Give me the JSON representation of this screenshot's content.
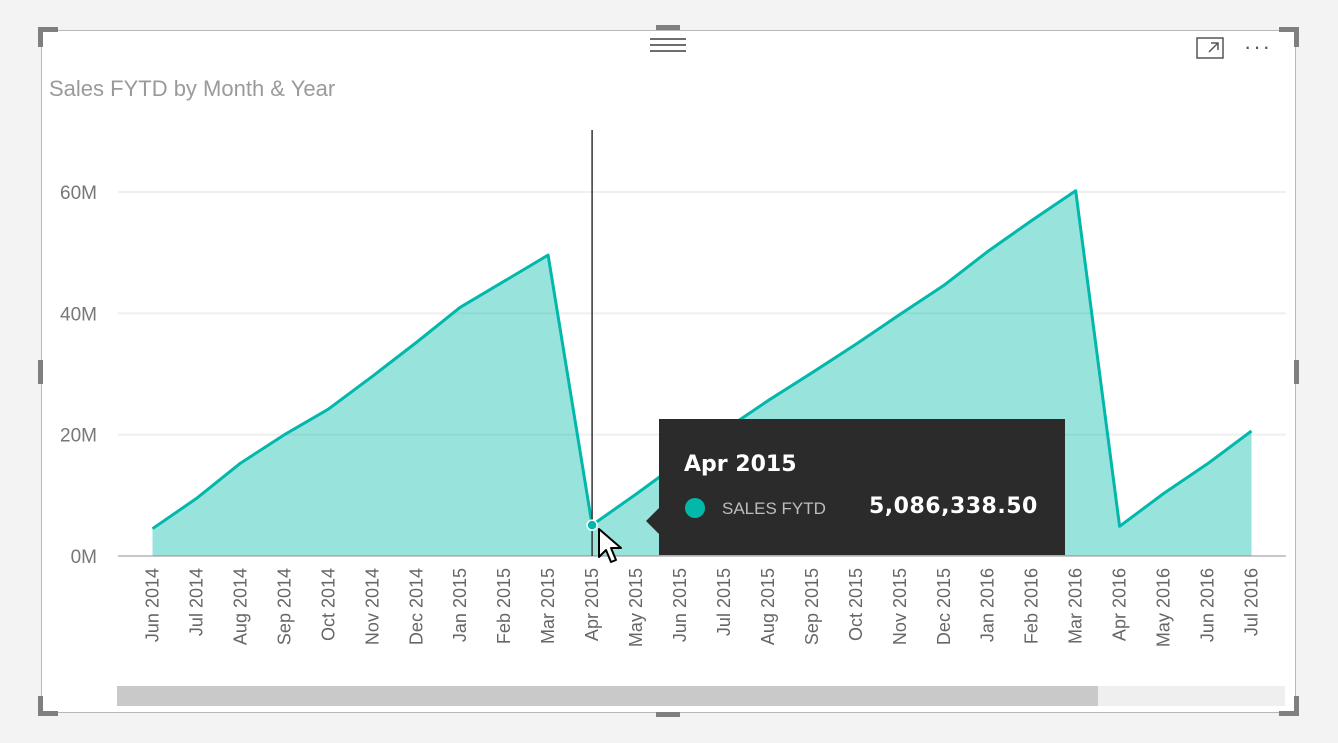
{
  "visual": {
    "title": "Sales FYTD by Month & Year",
    "more_label": "···",
    "focus_icon": "focus-mode-icon",
    "grip_icon": "drag-grip-icon"
  },
  "chart_data": {
    "type": "area",
    "title": "Sales FYTD by Month & Year",
    "xlabel": "",
    "ylabel": "",
    "ylim": [
      0,
      70000000
    ],
    "y_ticks": [
      0,
      20000000,
      40000000,
      60000000
    ],
    "y_tick_labels": [
      "0M",
      "20M",
      "40M",
      "60M"
    ],
    "grid": true,
    "categories": [
      "Jun 2014",
      "Jul 2014",
      "Aug 2014",
      "Sep 2014",
      "Oct 2014",
      "Nov 2014",
      "Dec 2014",
      "Jan 2015",
      "Feb 2015",
      "Mar 2015",
      "Apr 2015",
      "May 2015",
      "Jun 2015",
      "Jul 2015",
      "Aug 2015",
      "Sep 2015",
      "Oct 2015",
      "Nov 2015",
      "Dec 2015",
      "Jan 2016",
      "Feb 2016",
      "Mar 2016",
      "Apr 2016",
      "May 2016",
      "Jun 2016",
      "Jul 2016"
    ],
    "series": [
      {
        "name": "Sales FYTD",
        "color": "#01b8aa",
        "values": [
          4500000,
          9500000,
          15300000,
          20000000,
          24200000,
          29600000,
          35200000,
          41000000,
          45300000,
          49600000,
          5086338.5,
          10200000,
          15500000,
          20700000,
          25600000,
          30200000,
          34900000,
          39800000,
          44600000,
          50200000,
          55300000,
          60200000,
          4900000,
          10300000,
          15200000,
          20600000
        ]
      }
    ],
    "tooltip": {
      "category": "Apr 2015",
      "series_label": "SALES FYTD",
      "value_label": "5,086,338.50"
    }
  }
}
